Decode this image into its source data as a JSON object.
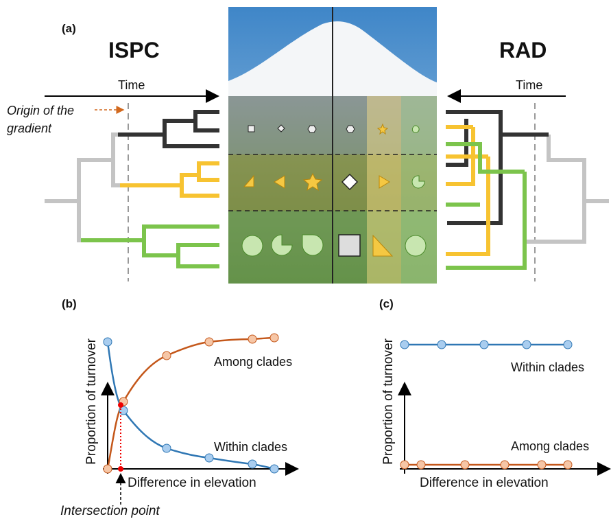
{
  "panel_a": {
    "label": "(a)",
    "left_title": "ISPC",
    "right_title": "RAD",
    "left_time": "Time",
    "right_time": "Time",
    "origin_annotation": [
      "Origin of the",
      "gradient"
    ]
  },
  "panel_b": {
    "label": "(b)",
    "y_label": "Proportion of turnover",
    "x_label": "Difference in elevation",
    "among": "Among clades",
    "within": "Within clades",
    "intersection": "Intersection point"
  },
  "panel_c": {
    "label": "(c)",
    "y_label": "Proportion of turnover",
    "x_label": "Difference in elevation",
    "among": "Among clades",
    "within": "Within clades"
  }
}
